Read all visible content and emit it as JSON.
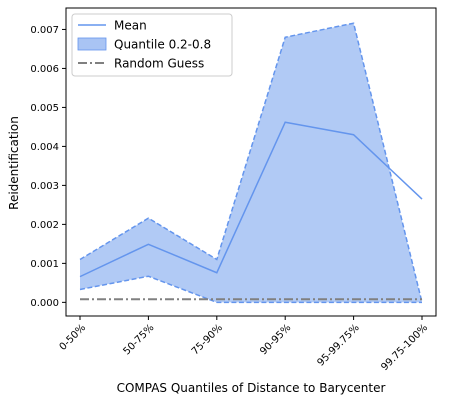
{
  "chart_data": {
    "type": "line",
    "title": "",
    "xlabel": "COMPAS Quantiles of Distance to Barycenter",
    "ylabel": "Reidentification",
    "categories": [
      "0-50%",
      "50-75%",
      "75-90%",
      "90-95%",
      "95-99.75%",
      "99.75-100%"
    ],
    "ylim": [
      -0.00035,
      0.00755
    ],
    "yticks": [
      0.0,
      0.001,
      0.002,
      0.003,
      0.004,
      0.005,
      0.006,
      0.007
    ],
    "ytick_labels": [
      "0.000",
      "0.001",
      "0.002",
      "0.003",
      "0.004",
      "0.005",
      "0.006",
      "0.007"
    ],
    "grid": false,
    "legend_position": "top-left",
    "series": [
      {
        "name": "Mean",
        "kind": "line",
        "color": "#6495ED",
        "values": [
          0.00066,
          0.00149,
          0.00076,
          0.00462,
          0.0043,
          0.00265
        ]
      },
      {
        "name": "Quantile 0.2-0.8",
        "kind": "band",
        "color": "#6495ED",
        "fill": "#A9C4F4",
        "lower": [
          0.00033,
          0.00067,
          0.0,
          0.0,
          0.0,
          0.0
        ],
        "upper": [
          0.0011,
          0.00216,
          0.0011,
          0.0068,
          0.00716,
          0.0
        ]
      },
      {
        "name": "Random Guess",
        "kind": "line",
        "color": "#808080",
        "style": "dashdot",
        "values": [
          8e-05,
          8e-05,
          8e-05,
          8e-05,
          8e-05,
          8e-05
        ]
      }
    ]
  }
}
